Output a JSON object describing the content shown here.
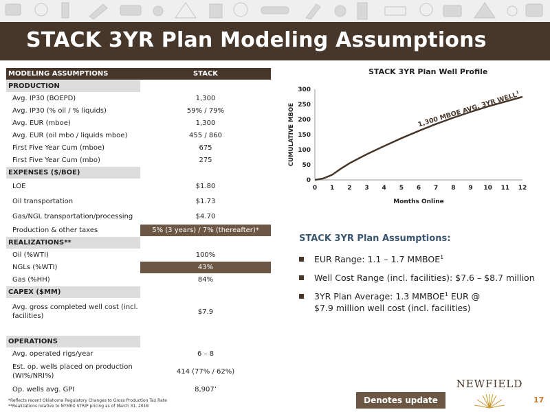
{
  "title": "STACK 3YR Plan Modeling Assumptions",
  "table": {
    "headers": [
      "MODELING ASSUMPTIONS",
      "STACK"
    ],
    "sections": [
      {
        "name": "PRODUCTION",
        "rows": [
          {
            "label": "Avg. IP30 (BOEPD)",
            "value": "1,300"
          },
          {
            "label": "Avg. IP30 (% oil / % liquids)",
            "value": "59% / 79%"
          },
          {
            "label": "Avg. EUR (mboe)",
            "value": "1,300"
          },
          {
            "label": "Avg. EUR (oil mbo / liquids mboe)",
            "value": "455 / 860"
          },
          {
            "label": "First Five Year Cum (mboe)",
            "value": "675"
          },
          {
            "label": "First Five Year Cum (mbo)",
            "value": "275"
          }
        ]
      },
      {
        "name": "EXPENSES ($/BOE)",
        "rows": [
          {
            "label": "LOE",
            "value": "$1.80"
          },
          {
            "label": "Oil transportation",
            "value": "$1.73"
          },
          {
            "label": "Gas/NGL transportation/processing",
            "value": "$4.70"
          },
          {
            "label": "Production & other taxes",
            "value": "5% (3 years) / 7% (thereafter)*"
          }
        ]
      },
      {
        "name": "REALIZATIONS**",
        "rows": [
          {
            "label": "Oil (%WTI)",
            "value": "100%"
          },
          {
            "label": "NGLs (%WTI)",
            "value": "43%"
          },
          {
            "label": "Gas (%HH)",
            "value": "84%"
          }
        ]
      },
      {
        "name": "CAPEX ($MM)",
        "rows": [
          {
            "label": "Avg. gross completed well cost (incl. facilities)",
            "value": "$7.9"
          }
        ]
      },
      {
        "name": "OPERATIONS",
        "rows": [
          {
            "label": "Avg. operated rigs/year",
            "value": "6 – 8"
          },
          {
            "label": "Est. op. wells placed on production (WI%/NRI%)",
            "value": "414 (77% / 62%)"
          },
          {
            "label": "Op. wells avg. GPI",
            "value": "8,907’"
          }
        ]
      }
    ]
  },
  "chart_data": {
    "type": "line",
    "title": "STACK 3YR Plan Well Profile",
    "xlabel": "Months Online",
    "ylabel": "CUMULATIVE MBOE",
    "xlim": [
      0,
      12
    ],
    "ylim": [
      0,
      300
    ],
    "xticks": [
      0,
      1,
      2,
      3,
      4,
      5,
      6,
      7,
      8,
      9,
      10,
      11,
      12
    ],
    "yticks": [
      0,
      50,
      100,
      150,
      200,
      250,
      300
    ],
    "x": [
      0,
      0.5,
      1,
      1.5,
      2,
      3,
      4,
      5,
      6,
      7,
      8,
      9,
      10,
      11,
      12
    ],
    "y": [
      0,
      5,
      17,
      37,
      55,
      85,
      112,
      138,
      162,
      185,
      206,
      225,
      243,
      259,
      275
    ],
    "annotation": "1,300 MBOE AVG. 3YR WELL",
    "annotation_sup": "1",
    "grid": false
  },
  "assumptions": {
    "title": "STACK 3YR Plan Assumptions:",
    "bullets": [
      {
        "text": "EUR Range: 1.1 – 1.7 MMBOE",
        "sup": "1",
        "tail": ""
      },
      {
        "text": "Well Cost Range (incl. facilities): $7.6 – $8.7 million",
        "sup": "",
        "tail": ""
      },
      {
        "text": "3YR Plan Average: 1.3 MMBOE",
        "sup": "1",
        "tail": " EUR @ $7.9 million well cost (incl. facilities)"
      }
    ]
  },
  "footnotes": [
    "*Reflects recent Oklahoma Regulatory Changes to Gross Production Tax Rate",
    "**Realizations relative to NYMEX STRIP pricing as of March 31, 2018"
  ],
  "update_label": "Denotes update",
  "logo": "NEWFIELD",
  "page_number": "17",
  "colors": {
    "brand_brown": "#47362a",
    "highlight_brown": "#6b5744",
    "section_gray": "#dcdcdc",
    "accent_orange": "#c8762a",
    "assumption_blue": "#3b5670"
  }
}
